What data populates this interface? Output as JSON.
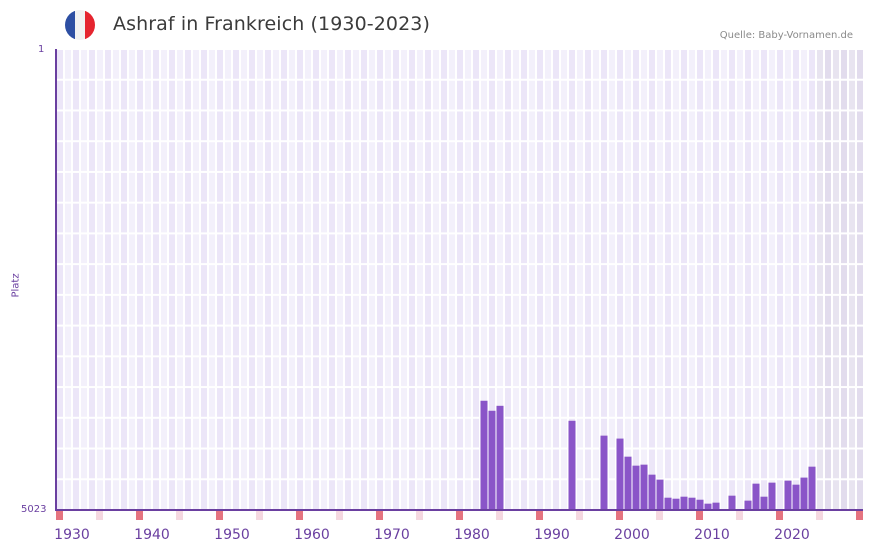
{
  "header": {
    "title": "Ashraf in Frankreich (1930-2023)",
    "source": "Quelle: Baby-Vornamen.de",
    "flag_colors": [
      "#2d4fa3",
      "#f2f2f2",
      "#e5252f"
    ]
  },
  "axis": {
    "y_label": "Platz",
    "y_top_tick": "1",
    "y_bottom_tick": "5023"
  },
  "colors": {
    "bar": "#8a55c8",
    "axis": "#6a3fa0",
    "cell_a": "#ece6f8",
    "cell_b": "#f3f0fb",
    "future_cell_a": "#e2dced",
    "future_cell_b": "#e8e4f0",
    "decade_marker": "#e57480",
    "half_decade_marker": "#f5d8e0"
  },
  "chart_data": {
    "type": "bar",
    "title": "Ashraf in Frankreich (1930-2023)",
    "xlabel": "",
    "ylabel": "Platz",
    "y_inverted": true,
    "ylim": [
      1,
      5023
    ],
    "x_range": [
      1928,
      2028
    ],
    "x_ticks": [
      "1930",
      "1940",
      "1950",
      "1960",
      "1970",
      "1980",
      "1990",
      "2000",
      "2010",
      "2020"
    ],
    "grid": true,
    "shaded_future_from": 2023,
    "categories": [
      1981,
      1982,
      1983,
      1992,
      1996,
      1998,
      1999,
      2000,
      2001,
      2002,
      2003,
      2004,
      2005,
      2006,
      2007,
      2008,
      2009,
      2010,
      2012,
      2013,
      2014,
      2015,
      2016,
      2017,
      2019,
      2020,
      2021,
      2022
    ],
    "values": [
      3833,
      3942,
      3888,
      4051,
      4213,
      4245,
      4442,
      4540,
      4529,
      4638,
      4692,
      4889,
      4900,
      4878,
      4889,
      4911,
      4954,
      4943,
      4867,
      5012,
      4921,
      4736,
      4878,
      4725,
      4703,
      4747,
      4670,
      4551
    ]
  }
}
